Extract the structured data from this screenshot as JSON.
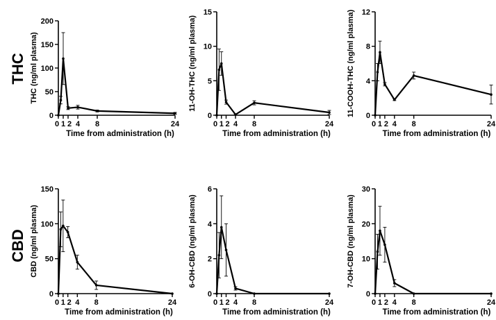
{
  "row_labels": [
    "THC",
    "CBD"
  ],
  "chart_data": [
    {
      "type": "line",
      "row": "THC",
      "xlabel": "Time from administration (h)",
      "ylabel": "THC (ng/ml plasma)",
      "x_ticks": [
        "0",
        "1",
        "2",
        "4",
        "8",
        "24"
      ],
      "y_ticks": [
        "0",
        "50",
        "100",
        "150",
        "200"
      ],
      "xlim": [
        0,
        24
      ],
      "ylim": [
        0,
        200
      ],
      "series": [
        {
          "name": "THC",
          "x": [
            0,
            0.5,
            1,
            2,
            4,
            8,
            24
          ],
          "y": [
            0,
            32,
            120,
            15,
            17,
            9,
            4
          ],
          "err": [
            0,
            8,
            55,
            3,
            4,
            2,
            2
          ]
        }
      ]
    },
    {
      "type": "line",
      "row": "THC",
      "xlabel": "Time from administration (h)",
      "ylabel": "11-OH-THC (ng/ml plasma)",
      "x_ticks": [
        "0",
        "1",
        "2",
        "4",
        "8",
        "24"
      ],
      "y_ticks": [
        "0",
        "5",
        "10",
        "15"
      ],
      "xlim": [
        0,
        24
      ],
      "ylim": [
        0,
        15
      ],
      "series": [
        {
          "name": "11-OH-THC",
          "x": [
            0,
            0.5,
            1,
            2,
            4,
            8,
            24
          ],
          "y": [
            0,
            6.6,
            7.5,
            1.9,
            0.1,
            1.8,
            0.4
          ],
          "err": [
            0,
            3.0,
            1.7,
            0.3,
            0.1,
            0.3,
            0.3
          ]
        }
      ]
    },
    {
      "type": "line",
      "row": "THC",
      "xlabel": "Time from administration (h)",
      "ylabel": "11-COOH-THC (ng/ml plasma)",
      "x_ticks": [
        "0",
        "1",
        "2",
        "4",
        "8",
        "24"
      ],
      "y_ticks": [
        "0",
        "4",
        "8",
        "12"
      ],
      "xlim": [
        0,
        24
      ],
      "ylim": [
        0,
        12
      ],
      "series": [
        {
          "name": "11-COOH-THC",
          "x": [
            0,
            0.5,
            1,
            2,
            4,
            8,
            24
          ],
          "y": [
            0,
            5,
            7.3,
            3.6,
            1.8,
            4.6,
            2.4
          ],
          "err": [
            0,
            1.0,
            1.3,
            0.2,
            0.1,
            0.4,
            1.1
          ]
        }
      ]
    },
    {
      "type": "line",
      "row": "CBD",
      "xlabel": "Time from administration (h)",
      "ylabel": "CBD (ng/ml plasma)",
      "x_ticks": [
        "0",
        "1",
        "2",
        "4",
        "8",
        "24"
      ],
      "y_ticks": [
        "0",
        "50",
        "100",
        "150"
      ],
      "xlim": [
        0,
        24
      ],
      "ylim": [
        0,
        150
      ],
      "series": [
        {
          "name": "CBD",
          "x": [
            0,
            0.5,
            1,
            2,
            4,
            8,
            24
          ],
          "y": [
            0,
            92,
            97,
            88,
            45,
            12,
            0
          ],
          "err": [
            0,
            25,
            37,
            8,
            10,
            6,
            0
          ]
        }
      ]
    },
    {
      "type": "line",
      "row": "CBD",
      "xlabel": "Time from administration (h)",
      "ylabel": "6-OH-CBD (ng/ml plasma)",
      "x_ticks": [
        "0",
        "1",
        "2",
        "4",
        "8",
        "24"
      ],
      "y_ticks": [
        "0",
        "2",
        "4",
        "6"
      ],
      "xlim": [
        0,
        24
      ],
      "ylim": [
        0,
        6
      ],
      "series": [
        {
          "name": "6-OH-CBD",
          "x": [
            0,
            0.5,
            1,
            2,
            4,
            8,
            24
          ],
          "y": [
            0,
            2.2,
            3.8,
            2.5,
            0.3,
            0,
            0
          ],
          "err": [
            0,
            1.3,
            1.8,
            1.5,
            0.1,
            0,
            0
          ]
        }
      ]
    },
    {
      "type": "line",
      "row": "CBD",
      "xlabel": "Time from administration (h)",
      "ylabel": "7-OH-CBD (ng/ml plasma)",
      "x_ticks": [
        "0",
        "1",
        "2",
        "4",
        "8",
        "24"
      ],
      "y_ticks": [
        "0",
        "10",
        "20",
        "30"
      ],
      "xlim": [
        0,
        24
      ],
      "ylim": [
        0,
        30
      ],
      "series": [
        {
          "name": "7-OH-CBD",
          "x": [
            0,
            0.5,
            1,
            2,
            4,
            8,
            24
          ],
          "y": [
            0,
            12,
            18,
            14,
            3,
            0,
            0
          ],
          "err": [
            0,
            5,
            7,
            5,
            1,
            0,
            0
          ]
        }
      ]
    }
  ]
}
